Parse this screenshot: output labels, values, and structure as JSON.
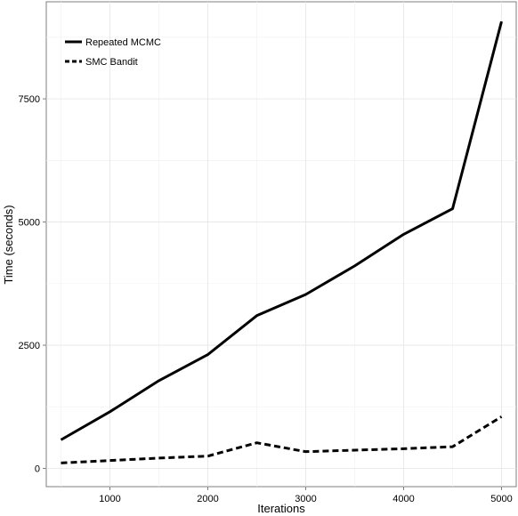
{
  "chart_data": {
    "type": "line",
    "xlabel": "Iterations",
    "ylabel": "Time (seconds)",
    "xlim": [
      350,
      5150
    ],
    "ylim": [
      -370,
      9470
    ],
    "xticks": [
      1000,
      2000,
      3000,
      4000,
      5000
    ],
    "yticks": [
      0,
      2500,
      5000,
      7500
    ],
    "xtick_labels": [
      "1000",
      "2000",
      "3000",
      "4000",
      "5000"
    ],
    "ytick_labels": [
      "0",
      "2500",
      "5000",
      "7500"
    ],
    "grid": true,
    "legend_position": "top-left",
    "x": [
      500,
      1000,
      1500,
      2000,
      2500,
      3000,
      3500,
      4000,
      4500,
      5000
    ],
    "series": [
      {
        "name": "Repeated MCMC",
        "style": "solid",
        "color": "#000000",
        "values": [
          580,
          1150,
          1780,
          2310,
          3100,
          3530,
          4110,
          4750,
          5270,
          9070
        ]
      },
      {
        "name": "SMC Bandit",
        "style": "dashed",
        "color": "#000000",
        "values": [
          110,
          160,
          210,
          250,
          520,
          340,
          370,
          400,
          440,
          1050
        ]
      }
    ]
  }
}
